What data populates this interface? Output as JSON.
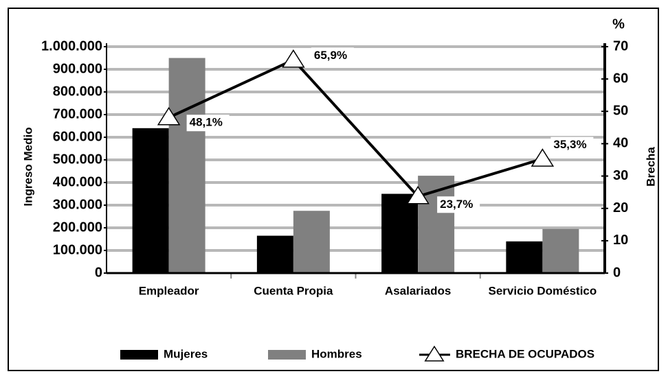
{
  "chart_data": {
    "type": "bar",
    "categories": [
      "Empleador",
      "Cuenta Propia",
      "Asalariados",
      "Servicio Doméstico"
    ],
    "series": [
      {
        "name": "Mujeres",
        "color": "#000000",
        "values": [
          640000,
          165000,
          350000,
          140000
        ]
      },
      {
        "name": "Hombres",
        "color": "#808080",
        "values": [
          950000,
          275000,
          430000,
          195000
        ]
      },
      {
        "name": "BRECHA DE OCUPADOS",
        "type": "line",
        "axis": "y2",
        "color": "#000000",
        "values": [
          48.1,
          65.9,
          23.7,
          35.3
        ],
        "value_labels": [
          "48,1%",
          "65,9%",
          "23,7%",
          "35,3%"
        ]
      }
    ],
    "ylabel": "Ingreso Medio",
    "y2label": "Brecha",
    "y2unit": "%",
    "ylim": [
      0,
      1000000
    ],
    "yticks": [
      0,
      {
        "value": 100000,
        "label": "100.000"
      },
      {
        "value": 200000,
        "label": "200.000"
      },
      {
        "value": 300000,
        "label": "300.000"
      },
      {
        "value": 400000,
        "label": "400.000"
      },
      {
        "value": 500000,
        "label": "500.000"
      },
      {
        "value": 600000,
        "label": "600.000"
      },
      {
        "value": 700000,
        "label": "700.000"
      },
      {
        "value": 800000,
        "label": "800.000"
      },
      {
        "value": 900000,
        "label": "900.000"
      },
      {
        "value": 1000000,
        "label": "1.000.000"
      }
    ],
    "y2lim": [
      0,
      70
    ],
    "y2ticks": [
      0,
      10,
      20,
      30,
      40,
      50,
      60,
      70
    ],
    "grid": true
  }
}
